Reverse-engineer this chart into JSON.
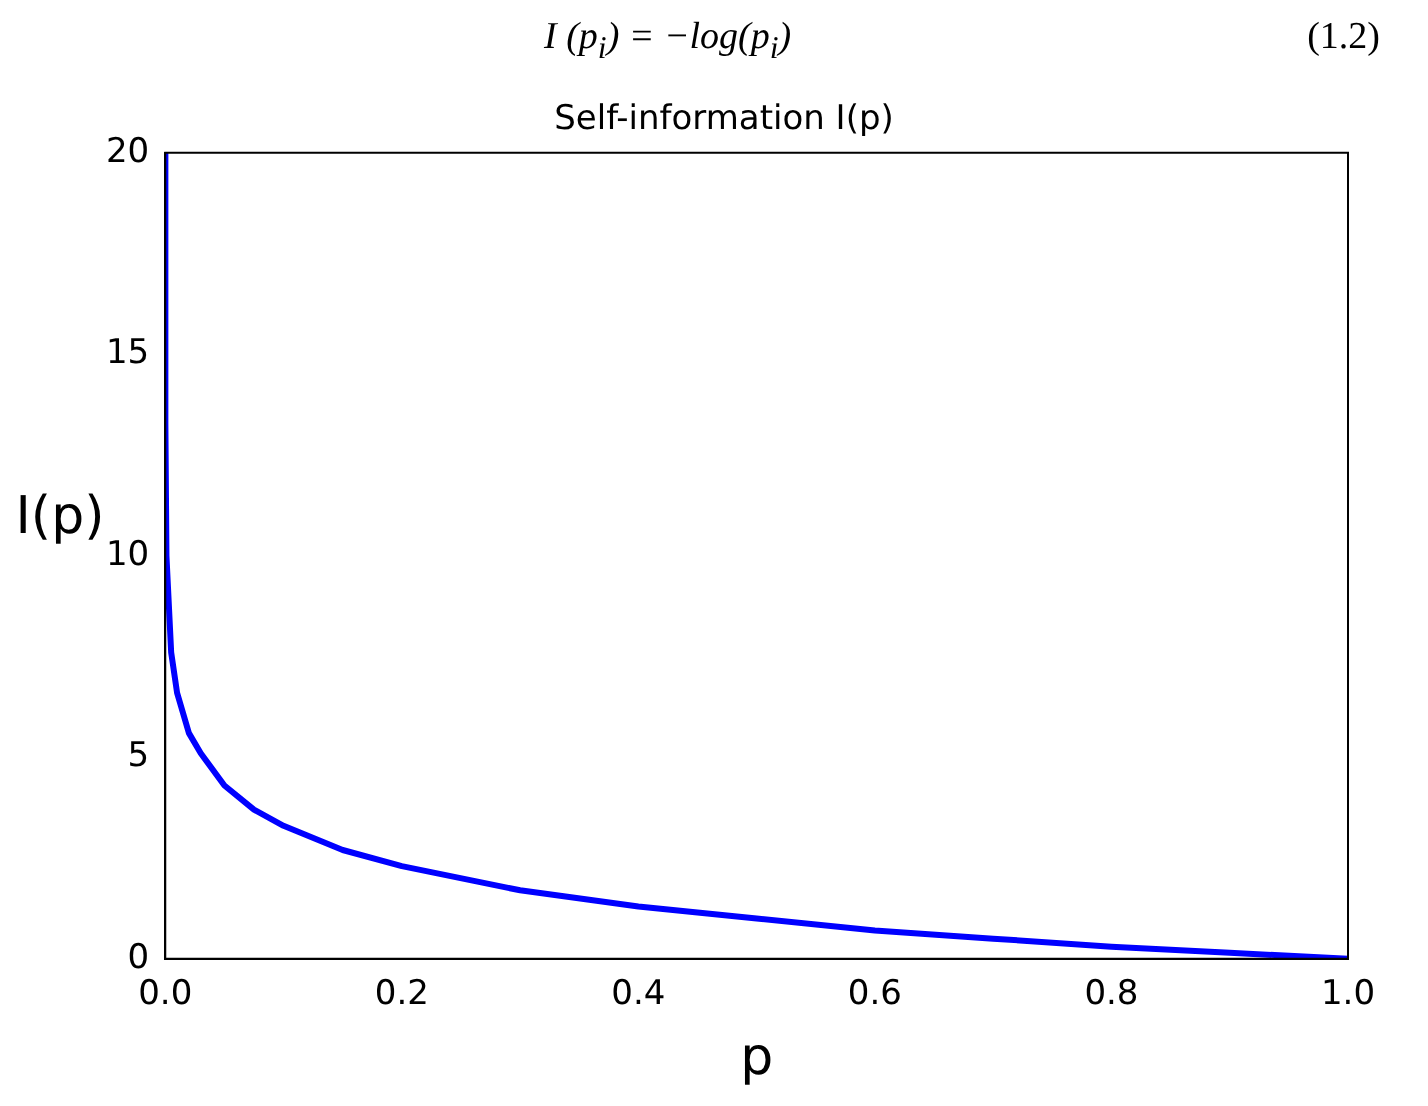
{
  "chart_data": {
    "type": "line",
    "title": "Self-information I(p)",
    "xlabel": "p",
    "ylabel": "I(p)",
    "annotations": [
      "I (p$_{i}$) = −log(p$_{i}$)",
      "(1.2)"
    ],
    "x": [
      1e-06,
      0.0001,
      0.001,
      0.005,
      0.01,
      0.02,
      0.03,
      0.05,
      0.075,
      0.1,
      0.15,
      0.2,
      0.3,
      0.4,
      0.5,
      0.6,
      0.7,
      0.8,
      0.9,
      1.0
    ],
    "series": [
      {
        "color": "#0000ff",
        "values": [
          20,
          13.3,
          10,
          7.6,
          6.6,
          5.6,
          5.1,
          4.3,
          3.7,
          3.3,
          2.7,
          2.3,
          1.7,
          1.3,
          1.0,
          0.7,
          0.5,
          0.3,
          0.15,
          0
        ]
      }
    ],
    "xlim": [
      0,
      1
    ],
    "ylim": [
      0,
      20
    ],
    "xticks": [
      {
        "value": 0,
        "label": "0.0"
      },
      {
        "value": 0.2,
        "label": "0.2"
      },
      {
        "value": 0.4,
        "label": "0.4"
      },
      {
        "value": 0.6,
        "label": "0.6"
      },
      {
        "value": 0.8,
        "label": "0.8"
      },
      {
        "value": 1,
        "label": "1.0"
      }
    ],
    "yticks": [
      0,
      5,
      10,
      15,
      20
    ],
    "grid": false,
    "legend": false,
    "marker": "none",
    "line_style": "solid"
  }
}
